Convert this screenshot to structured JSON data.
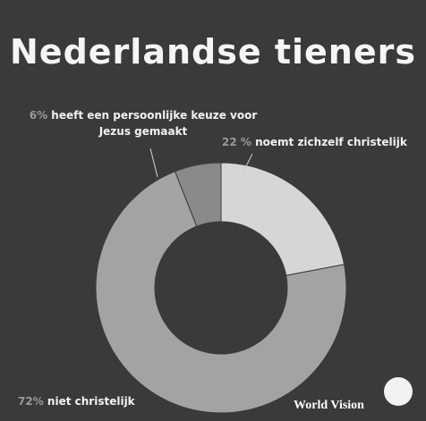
{
  "chart_data": {
    "type": "pie",
    "title": "Nederlandse tieners",
    "categories": [
      "noemt zichzelf christelijk",
      "niet christelijk",
      "heeft een persoonlijke keuze voor Jezus gemaakt"
    ],
    "values": [
      22,
      72,
      6
    ],
    "value_labels": [
      "22 %",
      "72%",
      "6%"
    ],
    "colors": [
      "#d6d6d6",
      "#a3a3a3",
      "#8a8a8a"
    ]
  },
  "logo": "World Vision"
}
